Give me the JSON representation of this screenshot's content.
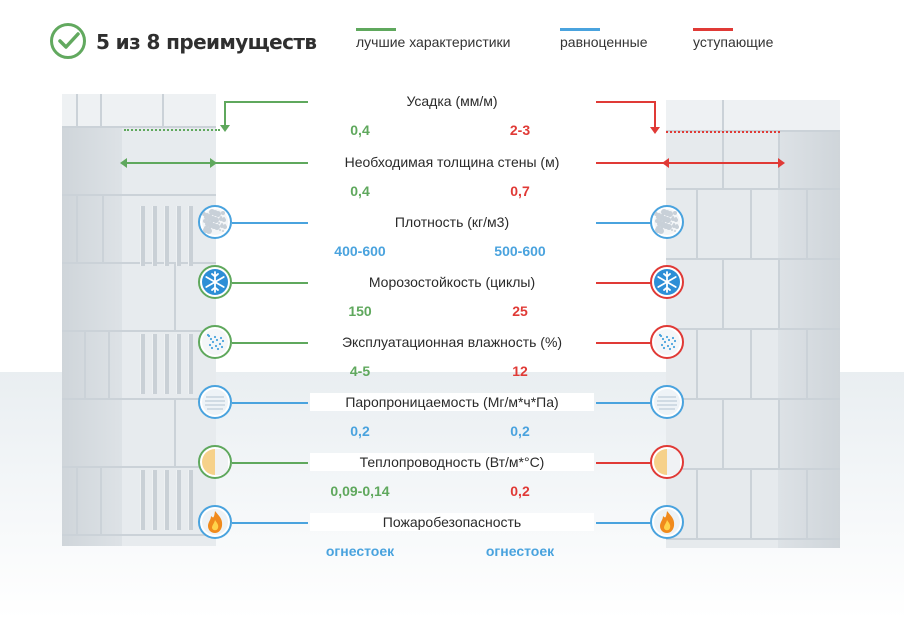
{
  "header": {
    "title": "5 из 8 преимуществ",
    "legend": [
      {
        "label": "лучшие характеристики",
        "color": "#5fa85d"
      },
      {
        "label": "равноценные",
        "color": "#4aa3de"
      },
      {
        "label": "уступающие",
        "color": "#e03a36"
      }
    ]
  },
  "colors": {
    "better": "#5fa85d",
    "equal": "#4aa3de",
    "worse": "#e03a36",
    "wall_front": "#e6eaed",
    "wall_side": "#d7dde2"
  },
  "rows": [
    {
      "label": "Усадка (мм/м)",
      "left": "0,4",
      "right": "2-3",
      "left_status": "better",
      "right_status": "worse",
      "icon": "none"
    },
    {
      "label": "Необходимая толщина стены (м)",
      "left": "0,4",
      "right": "0,7",
      "left_status": "better",
      "right_status": "worse",
      "icon": "none"
    },
    {
      "label": "Плотность (кг/м3)",
      "left": "400-600",
      "right": "500-600",
      "left_status": "equal",
      "right_status": "equal",
      "icon": "density-icon"
    },
    {
      "label": "Морозостойкость (циклы)",
      "left": "150",
      "right": "25",
      "left_status": "better",
      "right_status": "worse",
      "icon": "snowflake-icon"
    },
    {
      "label": "Эксплуатационная влажность (%)",
      "left": "4-5",
      "right": "12",
      "left_status": "better",
      "right_status": "worse",
      "icon": "moisture-icon"
    },
    {
      "label": "Паропроницаемость (Мг/м*ч*Па)",
      "left": "0,2",
      "right": "0,2",
      "left_status": "equal",
      "right_status": "equal",
      "icon": "vapor-icon"
    },
    {
      "label": "Теплопроводность (Вт/м*°C)",
      "left": "0,09-0,14",
      "right": "0,2",
      "left_status": "better",
      "right_status": "worse",
      "icon": "thermal-icon"
    },
    {
      "label": "Пожаробезопасность",
      "left": "огнестоек",
      "right": "огнестоек",
      "left_status": "equal",
      "right_status": "equal",
      "icon": "fire-icon"
    }
  ]
}
